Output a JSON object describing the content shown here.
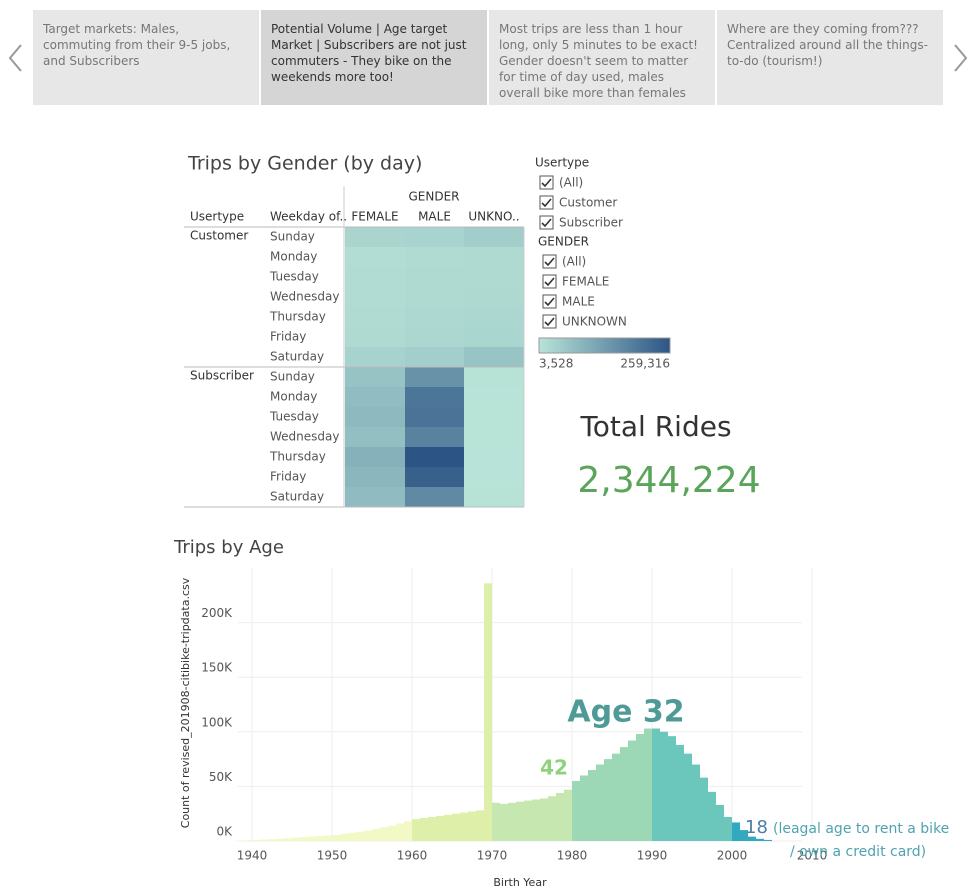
{
  "story": {
    "points": [
      "Target markets:  Males, commuting from their 9-5 jobs, and Subscribers",
      "Potential Volume | Age target Market | Subscribers are not just commuters - They bike on the weekends more too!",
      "Most trips are less than 1 hour long, only 5 minutes to be exact!  Gender doesn't seem to matter for time of day used, males overall bike more than females",
      "Where are they coming from??? Centralized around all the things-to-do (tourism!)"
    ]
  },
  "filters": [
    {
      "title": "Usertype",
      "options": [
        "(All)",
        "Customer",
        "Subscriber"
      ]
    },
    {
      "title": "GENDER",
      "options": [
        "(All)",
        "FEMALE",
        "MALE",
        "UNKNOWN"
      ]
    }
  ],
  "kpi": {
    "title": "Total Rides",
    "value": "2,344,224"
  },
  "chart_data": [
    {
      "type": "heatmap",
      "title": "Trips by Gender (by day)",
      "row_headers": [
        "Usertype",
        "Weekday of.."
      ],
      "column_title": "GENDER",
      "columns": [
        "FEMALE",
        "MALE",
        "UNKNO.."
      ],
      "groups": [
        "Customer",
        "Subscriber"
      ],
      "rows": [
        "Sunday",
        "Monday",
        "Tuesday",
        "Wednesday",
        "Thursday",
        "Friday",
        "Saturday"
      ],
      "values": [
        [
          [
            30000,
            32000,
            45000
          ],
          [
            16000,
            20000,
            22000
          ],
          [
            17000,
            21000,
            22000
          ],
          [
            17000,
            22000,
            24000
          ],
          [
            20000,
            25000,
            26000
          ],
          [
            21000,
            27000,
            29000
          ],
          [
            35000,
            42000,
            60000
          ]
        ],
        [
          [
            62000,
            150000,
            6000
          ],
          [
            75000,
            200000,
            4500
          ],
          [
            80000,
            205000,
            4200
          ],
          [
            70000,
            178000,
            4000
          ],
          [
            95000,
            259316,
            4600
          ],
          [
            86000,
            240000,
            4800
          ],
          [
            76000,
            165000,
            5500
          ]
        ]
      ],
      "colors": [
        "#b8e4d8",
        "#2c5585"
      ],
      "color_scale": [
        {
          "value": 3528,
          "label": "3,528"
        },
        {
          "value": 259316,
          "label": "259,316"
        }
      ]
    },
    {
      "type": "histogram",
      "title": "Trips by Age",
      "x_label": "Birth Year",
      "y_label": "Count of revised_201908-citibike-tripdata.csv",
      "xlim": [
        1938.25,
        2008.75
      ],
      "ylim": [
        0,
        250000
      ],
      "xticks": [
        1940,
        1950,
        1960,
        1970,
        1980,
        1990,
        2000,
        2010
      ],
      "yticks": [
        {
          "value": 0,
          "label": "0K"
        },
        {
          "value": 50000,
          "label": "50K"
        },
        {
          "value": 100000,
          "label": "100K"
        },
        {
          "value": 150000,
          "label": "150K"
        },
        {
          "value": 200000,
          "label": "200K"
        }
      ],
      "grid": true,
      "series": [
        {
          "color": "#f2f8c6",
          "bins": [
            1938,
            1939,
            1940,
            1941,
            1942,
            1943,
            1944,
            1945,
            1946,
            1947,
            1948,
            1949,
            1950,
            1951,
            1952,
            1953,
            1954,
            1955,
            1956,
            1957,
            1958,
            1959,
            1960
          ],
          "values": [
            500,
            700,
            1000,
            1300,
            1600,
            2000,
            2500,
            3000,
            3500,
            4000,
            4500,
            5000,
            5500,
            6500,
            7500,
            8500,
            9500,
            11000,
            12500,
            14000,
            16000,
            18000
          ]
        },
        {
          "color": "#ddefa8",
          "bins": [
            1960,
            1961,
            1962,
            1963,
            1964,
            1965,
            1966,
            1967,
            1968,
            1969,
            1970
          ],
          "values": [
            20000,
            21000,
            22000,
            23000,
            24000,
            25000,
            26000,
            27000,
            28000,
            236000
          ]
        },
        {
          "color": "#c6e7af",
          "bins": [
            1970,
            1971,
            1972,
            1973,
            1974,
            1975,
            1976,
            1977,
            1978,
            1979,
            1980
          ],
          "values": [
            35000,
            34000,
            35000,
            36000,
            37000,
            38000,
            39000,
            41000,
            44000,
            47000
          ]
        },
        {
          "color": "#9cd8b5",
          "bins": [
            1980,
            1981,
            1982,
            1983,
            1984,
            1985,
            1986,
            1987,
            1988,
            1989,
            1990
          ],
          "values": [
            55000,
            60000,
            65000,
            70000,
            75000,
            80000,
            86000,
            92000,
            98000,
            103000
          ]
        },
        {
          "color": "#6bc6bc",
          "bins": [
            1990,
            1991,
            1992,
            1993,
            1994,
            1995,
            1996,
            1997,
            1998,
            1999,
            2000
          ],
          "values": [
            103000,
            100000,
            96000,
            88000,
            80000,
            70000,
            58000,
            45000,
            33000,
            22000
          ]
        },
        {
          "color": "#33a9c1",
          "bins": [
            2000,
            2001,
            2002,
            2003,
            2004,
            2005
          ],
          "values": [
            17000,
            10000,
            4000,
            2000,
            1000
          ]
        }
      ],
      "annotations": [
        "Age 32",
        "42",
        "18",
        "(leagal age to rent a bike",
        "/ own a credit card)"
      ]
    }
  ]
}
